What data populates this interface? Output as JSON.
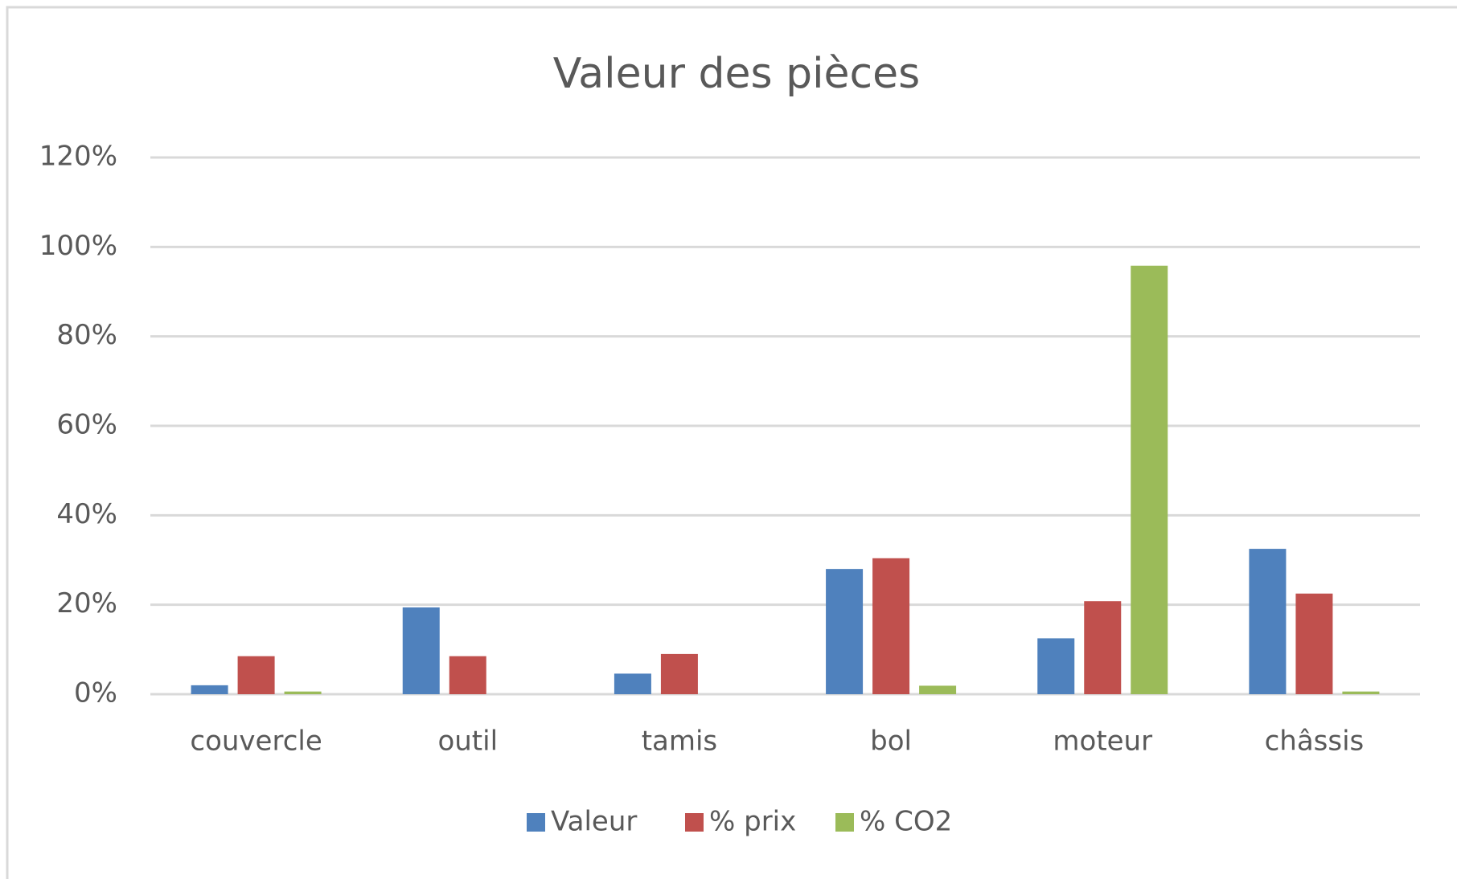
{
  "chart_data": {
    "type": "bar",
    "title": "Valeur des pièces",
    "categories": [
      "couvercle",
      "outil",
      "tamis",
      "bol",
      "moteur",
      "châssis"
    ],
    "series": [
      {
        "name": "Valeur",
        "color": "#4f81bd",
        "values": [
          2,
          19.4,
          4.6,
          28,
          12.5,
          32.5
        ]
      },
      {
        "name": "% prix",
        "color": "#c0504d",
        "values": [
          8.5,
          8.5,
          9,
          30.4,
          20.8,
          22.5
        ]
      },
      {
        "name": "% CO2",
        "color": "#9bbb59",
        "values": [
          0.6,
          0,
          0,
          1.9,
          95.8,
          0.6
        ]
      }
    ],
    "ylim": [
      0,
      120
    ],
    "yticks": [
      {
        "value": 0,
        "label": "0%"
      },
      {
        "value": 20,
        "label": "20%"
      },
      {
        "value": 40,
        "label": "40%"
      },
      {
        "value": 60,
        "label": "60%"
      },
      {
        "value": 80,
        "label": "80%"
      },
      {
        "value": 100,
        "label": "100%"
      },
      {
        "value": 120,
        "label": "120%"
      }
    ],
    "grid": true,
    "legend": "bottom"
  }
}
